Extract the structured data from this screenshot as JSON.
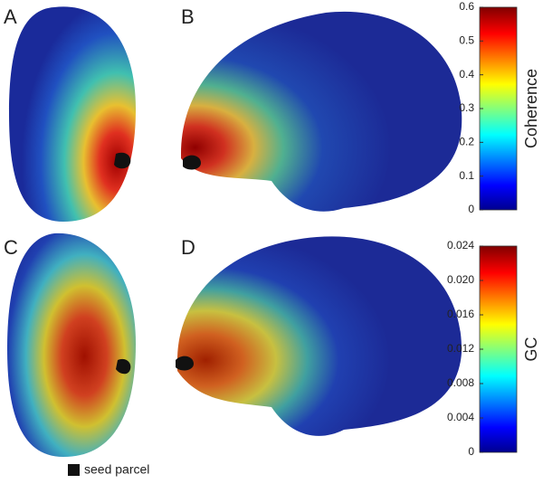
{
  "panels": [
    {
      "label": "A"
    },
    {
      "label": "B"
    },
    {
      "label": "C"
    },
    {
      "label": "D"
    }
  ],
  "colorbars": [
    {
      "label": "Coherence",
      "lim": [
        0,
        0.6
      ],
      "ticks": [
        0,
        0.1,
        0.2,
        0.3,
        0.4,
        0.5,
        0.6
      ]
    },
    {
      "label": "GC",
      "lim": [
        0,
        0.024
      ],
      "ticks": [
        0,
        0.004,
        0.008,
        0.012,
        0.016,
        {
          "value": 0.02,
          "label": "0.020"
        },
        0.024
      ]
    }
  ],
  "legend": "seed parcel"
}
